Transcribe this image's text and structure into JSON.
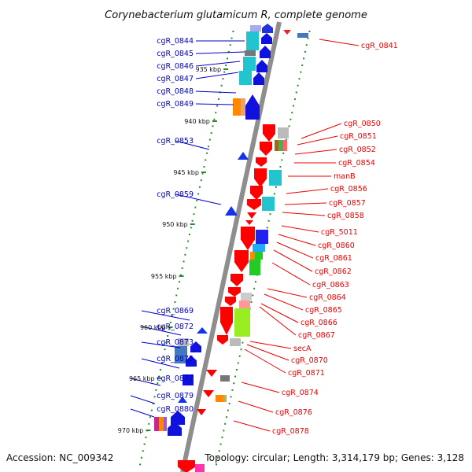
{
  "title": "Corynebacterium glutamicum R, complete genome",
  "footer": {
    "accession": "Accession: NC_009342",
    "summary": "Topology: circular; Length: 3,314,179 bp; Genes: 3,128"
  },
  "colors": {
    "backbone": "#8e8e8e",
    "left_label": "#0000cc",
    "right_label": "#ee0000",
    "ruler_dot": "#2a8a2a"
  },
  "scale_labels": [
    "935 kbp",
    "940 kbp",
    "945 kbp",
    "950 kbp",
    "955 kbp",
    "960 kbp",
    "965 kbp",
    "970 kbp"
  ],
  "left_genes": [
    "cgR_0844",
    "cgR_0845",
    "cgR_0846",
    "cgR_0847",
    "cgR_0848",
    "cgR_0849",
    "cgR_0853",
    "cgR_0859",
    "cgR_0869",
    "cgR_0872",
    "cgR_0873",
    "cgR_0875",
    "cgR_0877",
    "cgR_0879",
    "cgR_0880"
  ],
  "right_genes": [
    "cgR_0841",
    "cgR_0850",
    "cgR_0851",
    "cgR_0852",
    "cgR_0854",
    "manB",
    "cgR_0856",
    "cgR_0857",
    "cgR_0858",
    "cgR_5011",
    "cgR_0860",
    "cgR_0861",
    "cgR_0862",
    "cgR_0863",
    "cgR_0864",
    "cgR_0865",
    "cgR_0866",
    "cgR_0867",
    "secA",
    "cgR_0870",
    "cgR_0871",
    "cgR_0874",
    "cgR_0876",
    "cgR_0878"
  ]
}
